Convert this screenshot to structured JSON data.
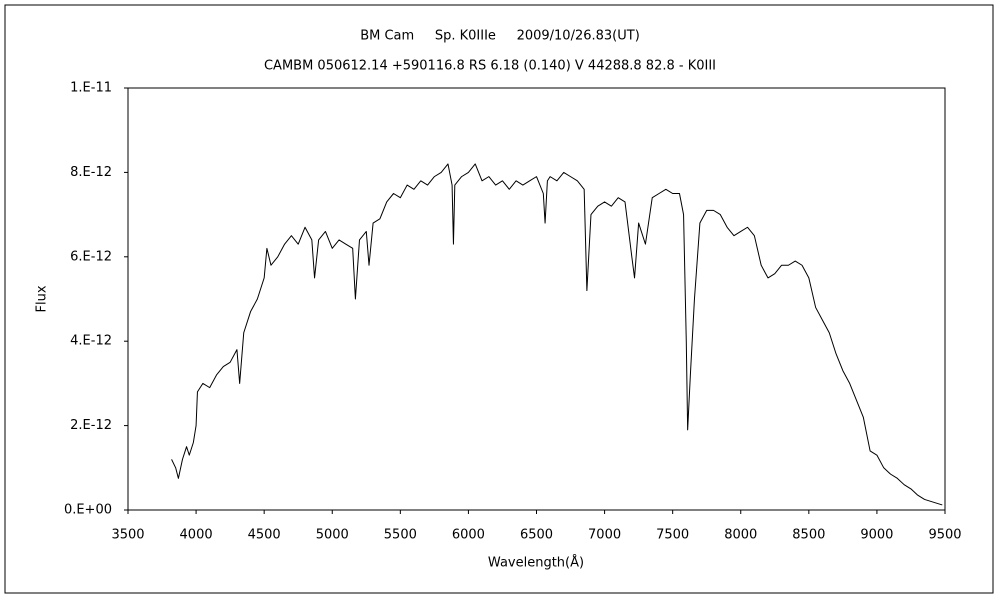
{
  "chart_data": {
    "type": "line",
    "title": "BM Cam     Sp. K0IIIe     2009/10/26.83(UT)",
    "subtitle": "CAMBM 050612.14 +590116.8 RS 6.18 (0.140) V 44288.8 82.8 - K0III",
    "x_label": "Wavelength(Å)",
    "y_label": "Flux",
    "xlim": [
      3500,
      9500
    ],
    "xticks": [
      3500,
      4000,
      4500,
      5000,
      5500,
      6000,
      6500,
      7000,
      7500,
      8000,
      8500,
      9000,
      9500
    ],
    "ylim": [
      0,
      1e-11
    ],
    "yticks": [
      {
        "value": 0,
        "label": "0.E+00"
      },
      {
        "value": 2e-12,
        "label": "2.E-12"
      },
      {
        "value": 4e-12,
        "label": "4.E-12"
      },
      {
        "value": 6e-12,
        "label": "6.E-12"
      },
      {
        "value": 8e-12,
        "label": "8.E-12"
      },
      {
        "value": 1e-11,
        "label": "1.E-11"
      }
    ],
    "grid": false,
    "series": [
      {
        "color": "#000000",
        "x": [
          3820,
          3850,
          3870,
          3900,
          3930,
          3950,
          3980,
          4000,
          4010,
          4050,
          4100,
          4150,
          4200,
          4250,
          4300,
          4320,
          4350,
          4400,
          4450,
          4500,
          4520,
          4550,
          4600,
          4650,
          4700,
          4750,
          4800,
          4850,
          4870,
          4900,
          4950,
          5000,
          5050,
          5100,
          5150,
          5170,
          5200,
          5250,
          5270,
          5300,
          5350,
          5400,
          5450,
          5500,
          5550,
          5600,
          5650,
          5700,
          5750,
          5800,
          5850,
          5880,
          5890,
          5900,
          5950,
          6000,
          6050,
          6100,
          6150,
          6200,
          6250,
          6300,
          6350,
          6400,
          6450,
          6500,
          6550,
          6563,
          6580,
          6600,
          6650,
          6700,
          6750,
          6800,
          6850,
          6870,
          6900,
          6950,
          7000,
          7050,
          7100,
          7150,
          7200,
          7220,
          7250,
          7300,
          7350,
          7400,
          7450,
          7500,
          7550,
          7580,
          7600,
          7610,
          7630,
          7660,
          7700,
          7750,
          7800,
          7850,
          7900,
          7950,
          8000,
          8050,
          8100,
          8150,
          8200,
          8250,
          8300,
          8350,
          8400,
          8450,
          8500,
          8550,
          8600,
          8650,
          8700,
          8750,
          8800,
          8850,
          8900,
          8950,
          9000,
          9050,
          9100,
          9150,
          9200,
          9250,
          9300,
          9350,
          9400,
          9450,
          9480
        ],
        "values": [
          1.2e-12,
          1e-12,
          7.5e-13,
          1.2e-12,
          1.5e-12,
          1.3e-12,
          1.6e-12,
          2e-12,
          2.8e-12,
          3e-12,
          2.9e-12,
          3.2e-12,
          3.4e-12,
          3.5e-12,
          3.8e-12,
          3e-12,
          4.2e-12,
          4.7e-12,
          5e-12,
          5.5e-12,
          6.2e-12,
          5.8e-12,
          6e-12,
          6.3e-12,
          6.5e-12,
          6.3e-12,
          6.7e-12,
          6.4e-12,
          5.5e-12,
          6.4e-12,
          6.6e-12,
          6.2e-12,
          6.4e-12,
          6.3e-12,
          6.2e-12,
          5e-12,
          6.4e-12,
          6.6e-12,
          5.8e-12,
          6.8e-12,
          6.9e-12,
          7.3e-12,
          7.5e-12,
          7.4e-12,
          7.7e-12,
          7.6e-12,
          7.8e-12,
          7.7e-12,
          7.9e-12,
          8e-12,
          8.2e-12,
          7.7e-12,
          6.3e-12,
          7.7e-12,
          7.9e-12,
          8e-12,
          8.2e-12,
          7.8e-12,
          7.9e-12,
          7.7e-12,
          7.8e-12,
          7.6e-12,
          7.8e-12,
          7.7e-12,
          7.8e-12,
          7.9e-12,
          7.5e-12,
          6.8e-12,
          7.8e-12,
          7.9e-12,
          7.8e-12,
          8e-12,
          7.9e-12,
          7.8e-12,
          7.6e-12,
          5.2e-12,
          7e-12,
          7.2e-12,
          7.3e-12,
          7.2e-12,
          7.4e-12,
          7.3e-12,
          6e-12,
          5.5e-12,
          6.8e-12,
          6.3e-12,
          7.4e-12,
          7.5e-12,
          7.6e-12,
          7.5e-12,
          7.5e-12,
          7e-12,
          4e-12,
          1.9e-12,
          3.2e-12,
          5e-12,
          6.8e-12,
          7.1e-12,
          7.1e-12,
          7e-12,
          6.7e-12,
          6.5e-12,
          6.6e-12,
          6.7e-12,
          6.5e-12,
          5.8e-12,
          5.5e-12,
          5.6e-12,
          5.8e-12,
          5.8e-12,
          5.9e-12,
          5.8e-12,
          5.5e-12,
          4.8e-12,
          4.5e-12,
          4.2e-12,
          3.7e-12,
          3.3e-12,
          3e-12,
          2.6e-12,
          2.2e-12,
          1.4e-12,
          1.3e-12,
          1e-12,
          8.5e-13,
          7.5e-13,
          6e-13,
          5e-13,
          3.5e-13,
          2.5e-13,
          2e-13,
          1.5e-13,
          1.2e-13
        ]
      }
    ]
  }
}
